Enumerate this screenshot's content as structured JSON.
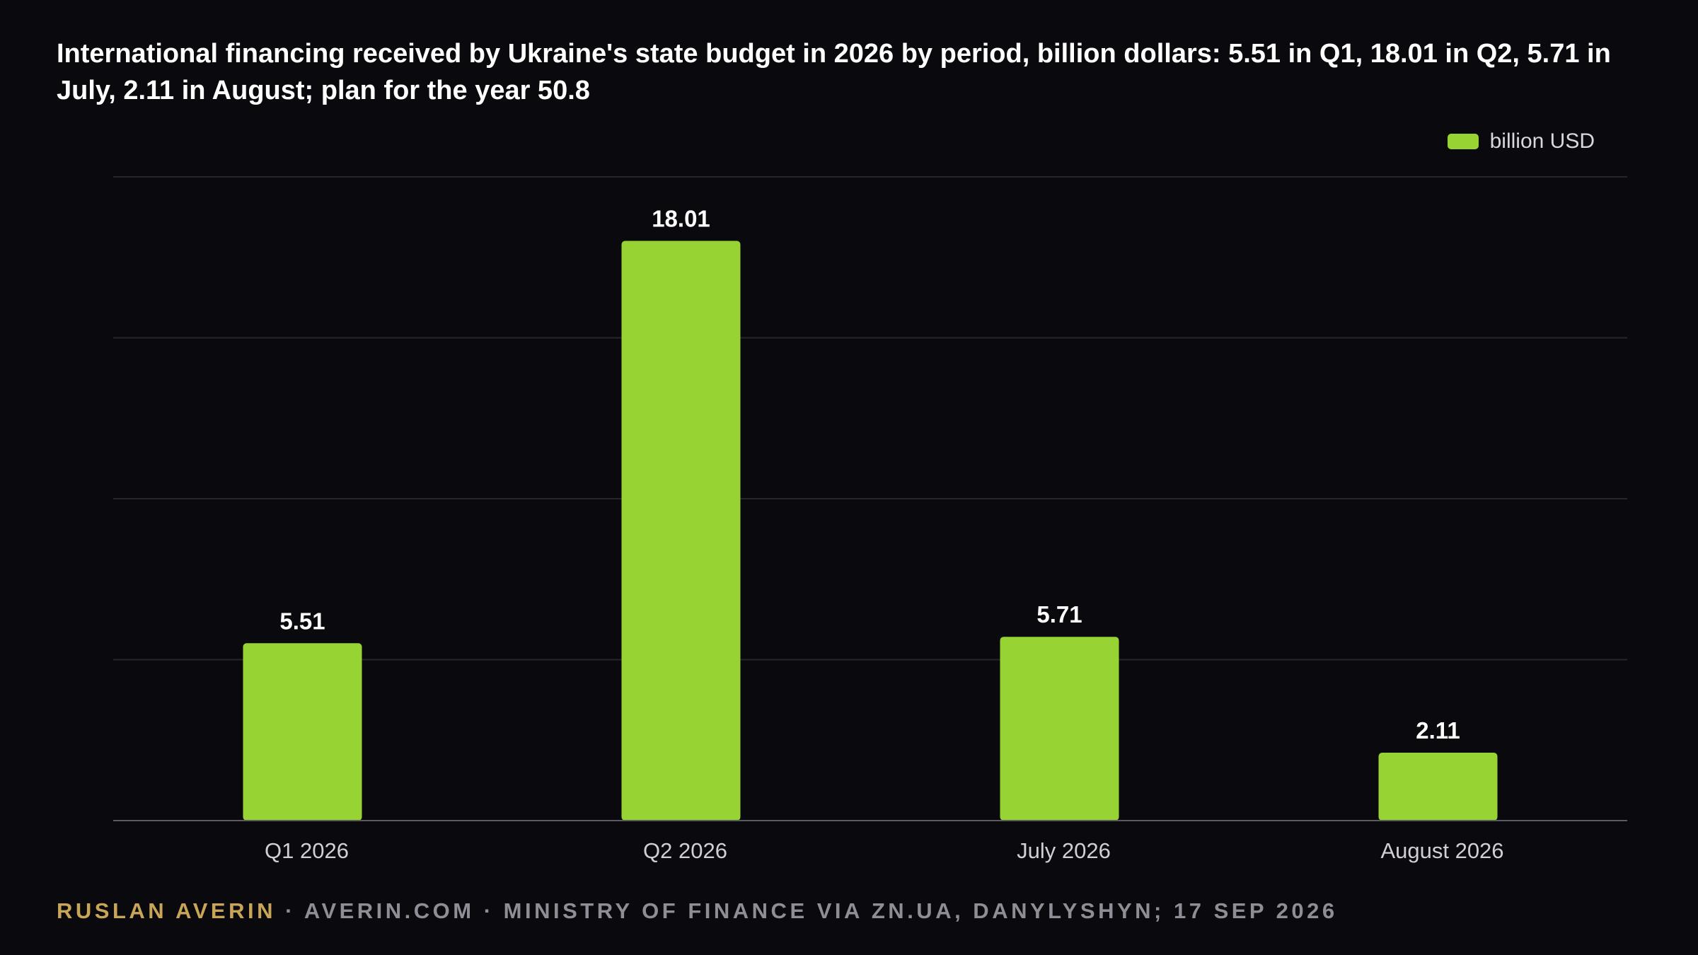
{
  "title": "International financing received by Ukraine's state budget in 2026 by period, billion dollars: 5.51 in Q1, 18.01 in Q2, 5.71 in July, 2.11 in August; plan for the year 50.8",
  "legend_label": "billion USD",
  "colors": {
    "background": "#0a0a0e",
    "bar": "#98d334",
    "grid": "#26262b",
    "axis": "#5a5a60",
    "author": "#c9a557",
    "footer": "#8e8e96"
  },
  "footer": {
    "author": "RUSLAN AVERIN",
    "rest": " · AVERIN.COM · MINISTRY OF FINANCE VIA ZN.UA, DANYLYSHYN; 17 SEP 2026"
  },
  "chart_data": {
    "type": "bar",
    "title": "International financing received by Ukraine's state budget in 2026 by period, billion dollars: 5.51 in Q1, 18.01 in Q2, 5.71 in July, 2.11 in August; plan for the year 50.8",
    "categories": [
      "Q1 2026",
      "Q2 2026",
      "July 2026",
      "August 2026"
    ],
    "series": [
      {
        "name": "billion USD",
        "values": [
          5.51,
          18.01,
          5.71,
          2.11
        ]
      }
    ],
    "value_labels": [
      "5.51",
      "18.01",
      "5.71",
      "2.11"
    ],
    "xlabel": "",
    "ylabel": "",
    "ylim": [
      0,
      20
    ],
    "grid": true,
    "legend_position": "top-right"
  }
}
